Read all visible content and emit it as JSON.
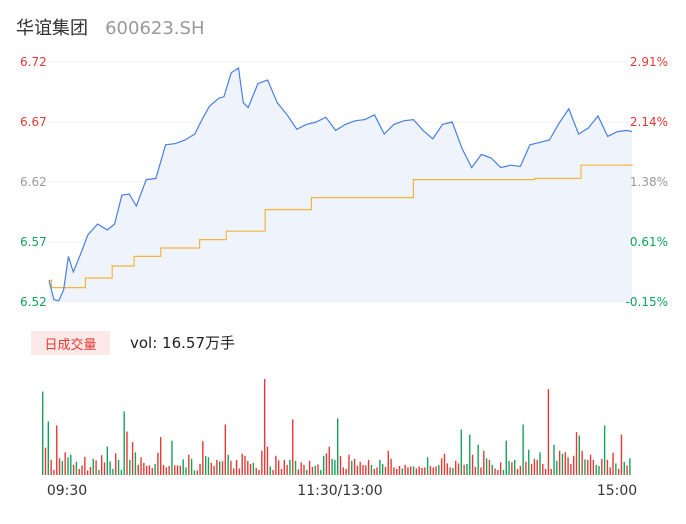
{
  "header": {
    "name": "华谊集团",
    "code": "600623.SH"
  },
  "colors": {
    "price_line": "#4a7fe0",
    "avg_line": "#f5b53b",
    "up": "#e53935",
    "down": "#12a35a",
    "neutral": "#999999",
    "area_fill": "#eef3fc"
  },
  "volume_badge": "日成交量",
  "volume_text": "vol: 16.57万手",
  "chart_data": {
    "type": "line",
    "price_axis": {
      "ticks": [
        "6.72",
        "6.67",
        "6.62",
        "6.57",
        "6.52"
      ],
      "tick_values": [
        6.72,
        6.67,
        6.62,
        6.57,
        6.52
      ],
      "range": [
        6.52,
        6.72
      ]
    },
    "pct_axis": {
      "ticks": [
        "2.91%",
        "2.14%",
        "1.38%",
        "0.61%",
        "-0.15%"
      ]
    },
    "x_ticks": [
      "09:30",
      "11:30/13:00",
      "15:00"
    ],
    "series": [
      {
        "key": "price",
        "x": [
          0,
          2,
          4,
          6,
          8,
          10,
          13,
          16,
          20,
          24,
          27,
          30,
          33,
          36,
          40,
          44,
          48,
          52,
          56,
          60,
          63,
          66,
          70,
          72,
          75,
          78,
          80,
          82,
          86,
          90,
          94,
          98,
          102,
          106,
          110,
          114,
          118,
          122,
          126,
          130,
          134,
          138,
          142,
          146,
          150,
          154,
          158,
          162,
          166,
          170,
          174,
          178,
          182,
          186,
          190,
          194,
          198,
          202,
          206,
          210,
          214,
          218,
          222,
          226,
          230,
          234,
          238,
          240
        ],
        "values": [
          6.538,
          6.522,
          6.521,
          6.53,
          6.558,
          6.545,
          6.56,
          6.576,
          6.585,
          6.58,
          6.585,
          6.609,
          6.61,
          6.6,
          6.622,
          6.623,
          6.651,
          6.652,
          6.655,
          6.66,
          6.672,
          6.683,
          6.69,
          6.691,
          6.711,
          6.715,
          6.686,
          6.682,
          6.702,
          6.705,
          6.686,
          6.676,
          6.664,
          6.668,
          6.67,
          6.674,
          6.663,
          6.668,
          6.671,
          6.672,
          6.676,
          6.66,
          6.668,
          6.671,
          6.672,
          6.663,
          6.656,
          6.668,
          6.67,
          6.648,
          6.632,
          6.643,
          6.64,
          6.632,
          6.634,
          6.633,
          6.651,
          6.653,
          6.655,
          6.669,
          6.681,
          6.66,
          6.665,
          6.675,
          6.658,
          6.662,
          6.663,
          6.662
        ]
      },
      {
        "key": "avg",
        "x": [
          0,
          1,
          15,
          26,
          35,
          46,
          62,
          73,
          89,
          108,
          150,
          200,
          219,
          240
        ],
        "values": [
          6.538,
          6.532,
          6.54,
          6.55,
          6.558,
          6.565,
          6.572,
          6.579,
          6.597,
          6.607,
          6.622,
          6.623,
          6.634,
          6.635
        ]
      }
    ],
    "volume": {
      "unit": "万手",
      "total": 16.57,
      "bars": [
        {
          "v": 1650,
          "d": "down"
        },
        {
          "v": 540,
          "d": "up"
        },
        {
          "v": 1060,
          "d": "down"
        },
        {
          "v": 300,
          "d": "up"
        },
        {
          "v": 100,
          "d": "up"
        },
        {
          "v": 980,
          "d": "up"
        },
        {
          "v": 330,
          "d": "up"
        },
        {
          "v": 280,
          "d": "down"
        },
        {
          "v": 450,
          "d": "up"
        },
        {
          "v": 350,
          "d": "down"
        },
        {
          "v": 400,
          "d": "down"
        },
        {
          "v": 200,
          "d": "up"
        },
        {
          "v": 260,
          "d": "down"
        },
        {
          "v": 120,
          "d": "up"
        },
        {
          "v": 190,
          "d": "up"
        },
        {
          "v": 360,
          "d": "up"
        },
        {
          "v": 90,
          "d": "up"
        },
        {
          "v": 160,
          "d": "up"
        },
        {
          "v": 320,
          "d": "down"
        },
        {
          "v": 290,
          "d": "up"
        },
        {
          "v": 100,
          "d": "down"
        },
        {
          "v": 390,
          "d": "up"
        },
        {
          "v": 250,
          "d": "up"
        },
        {
          "v": 560,
          "d": "down"
        },
        {
          "v": 270,
          "d": "down"
        },
        {
          "v": 120,
          "d": "down"
        },
        {
          "v": 430,
          "d": "up"
        },
        {
          "v": 300,
          "d": "down"
        },
        {
          "v": 100,
          "d": "down"
        },
        {
          "v": 1260,
          "d": "down"
        },
        {
          "v": 860,
          "d": "up"
        },
        {
          "v": 300,
          "d": "down"
        },
        {
          "v": 650,
          "d": "up"
        },
        {
          "v": 450,
          "d": "down"
        },
        {
          "v": 200,
          "d": "up"
        },
        {
          "v": 350,
          "d": "up"
        },
        {
          "v": 240,
          "d": "up"
        },
        {
          "v": 180,
          "d": "up"
        },
        {
          "v": 190,
          "d": "up"
        },
        {
          "v": 140,
          "d": "up"
        },
        {
          "v": 220,
          "d": "down"
        },
        {
          "v": 440,
          "d": "up"
        },
        {
          "v": 750,
          "d": "up"
        },
        {
          "v": 200,
          "d": "up"
        },
        {
          "v": 150,
          "d": "up"
        },
        {
          "v": 180,
          "d": "up"
        },
        {
          "v": 680,
          "d": "down"
        },
        {
          "v": 190,
          "d": "up"
        },
        {
          "v": 190,
          "d": "up"
        },
        {
          "v": 180,
          "d": "up"
        },
        {
          "v": 310,
          "d": "down"
        },
        {
          "v": 150,
          "d": "down"
        },
        {
          "v": 400,
          "d": "up"
        },
        {
          "v": 320,
          "d": "down"
        },
        {
          "v": 90,
          "d": "down"
        },
        {
          "v": 90,
          "d": "up"
        },
        {
          "v": 220,
          "d": "up"
        },
        {
          "v": 670,
          "d": "up"
        },
        {
          "v": 380,
          "d": "down"
        },
        {
          "v": 350,
          "d": "down"
        },
        {
          "v": 240,
          "d": "up"
        },
        {
          "v": 180,
          "d": "up"
        },
        {
          "v": 300,
          "d": "up"
        },
        {
          "v": 270,
          "d": "down"
        },
        {
          "v": 270,
          "d": "up"
        },
        {
          "v": 1000,
          "d": "up"
        },
        {
          "v": 400,
          "d": "down"
        },
        {
          "v": 280,
          "d": "up"
        },
        {
          "v": 130,
          "d": "up"
        },
        {
          "v": 300,
          "d": "up"
        },
        {
          "v": 130,
          "d": "up"
        },
        {
          "v": 420,
          "d": "up"
        },
        {
          "v": 380,
          "d": "up"
        },
        {
          "v": 280,
          "d": "up"
        },
        {
          "v": 220,
          "d": "up"
        },
        {
          "v": 240,
          "d": "down"
        },
        {
          "v": 140,
          "d": "up"
        },
        {
          "v": 100,
          "d": "up"
        },
        {
          "v": 480,
          "d": "up"
        },
        {
          "v": 1900,
          "d": "up"
        },
        {
          "v": 560,
          "d": "up"
        },
        {
          "v": 170,
          "d": "down"
        },
        {
          "v": 100,
          "d": "up"
        },
        {
          "v": 380,
          "d": "up"
        },
        {
          "v": 290,
          "d": "up"
        },
        {
          "v": 120,
          "d": "up"
        },
        {
          "v": 300,
          "d": "up"
        },
        {
          "v": 200,
          "d": "up"
        },
        {
          "v": 300,
          "d": "down"
        },
        {
          "v": 1100,
          "d": "up"
        },
        {
          "v": 280,
          "d": "down"
        },
        {
          "v": 110,
          "d": "up"
        },
        {
          "v": 250,
          "d": "up"
        },
        {
          "v": 200,
          "d": "up"
        },
        {
          "v": 100,
          "d": "down"
        },
        {
          "v": 280,
          "d": "up"
        },
        {
          "v": 160,
          "d": "up"
        },
        {
          "v": 180,
          "d": "down"
        },
        {
          "v": 210,
          "d": "up"
        },
        {
          "v": 100,
          "d": "down"
        },
        {
          "v": 380,
          "d": "down"
        },
        {
          "v": 430,
          "d": "up"
        },
        {
          "v": 560,
          "d": "up"
        },
        {
          "v": 320,
          "d": "down"
        },
        {
          "v": 300,
          "d": "down"
        },
        {
          "v": 1120,
          "d": "down"
        },
        {
          "v": 380,
          "d": "up"
        },
        {
          "v": 150,
          "d": "up"
        },
        {
          "v": 120,
          "d": "up"
        },
        {
          "v": 400,
          "d": "up"
        },
        {
          "v": 280,
          "d": "down"
        },
        {
          "v": 320,
          "d": "up"
        },
        {
          "v": 180,
          "d": "up"
        },
        {
          "v": 260,
          "d": "up"
        },
        {
          "v": 200,
          "d": "up"
        },
        {
          "v": 190,
          "d": "up"
        },
        {
          "v": 300,
          "d": "up"
        },
        {
          "v": 200,
          "d": "down"
        },
        {
          "v": 120,
          "d": "up"
        },
        {
          "v": 150,
          "d": "up"
        },
        {
          "v": 300,
          "d": "down"
        },
        {
          "v": 220,
          "d": "down"
        },
        {
          "v": 160,
          "d": "up"
        },
        {
          "v": 480,
          "d": "up"
        },
        {
          "v": 320,
          "d": "up"
        },
        {
          "v": 150,
          "d": "up"
        },
        {
          "v": 120,
          "d": "up"
        },
        {
          "v": 180,
          "d": "up"
        },
        {
          "v": 130,
          "d": "down"
        },
        {
          "v": 200,
          "d": "up"
        },
        {
          "v": 150,
          "d": "up"
        },
        {
          "v": 170,
          "d": "up"
        },
        {
          "v": 170,
          "d": "down"
        },
        {
          "v": 130,
          "d": "up"
        },
        {
          "v": 170,
          "d": "up"
        },
        {
          "v": 140,
          "d": "up"
        },
        {
          "v": 150,
          "d": "up"
        },
        {
          "v": 350,
          "d": "down"
        },
        {
          "v": 180,
          "d": "up"
        },
        {
          "v": 150,
          "d": "up"
        },
        {
          "v": 170,
          "d": "up"
        },
        {
          "v": 200,
          "d": "down"
        },
        {
          "v": 330,
          "d": "up"
        },
        {
          "v": 420,
          "d": "up"
        },
        {
          "v": 230,
          "d": "up"
        },
        {
          "v": 150,
          "d": "up"
        },
        {
          "v": 140,
          "d": "down"
        },
        {
          "v": 280,
          "d": "up"
        },
        {
          "v": 230,
          "d": "up"
        },
        {
          "v": 900,
          "d": "down"
        },
        {
          "v": 200,
          "d": "up"
        },
        {
          "v": 220,
          "d": "down"
        },
        {
          "v": 800,
          "d": "down"
        },
        {
          "v": 400,
          "d": "up"
        },
        {
          "v": 160,
          "d": "up"
        },
        {
          "v": 600,
          "d": "down"
        },
        {
          "v": 150,
          "d": "up"
        },
        {
          "v": 480,
          "d": "up"
        },
        {
          "v": 330,
          "d": "down"
        },
        {
          "v": 300,
          "d": "up"
        },
        {
          "v": 200,
          "d": "down"
        },
        {
          "v": 130,
          "d": "up"
        },
        {
          "v": 100,
          "d": "up"
        },
        {
          "v": 250,
          "d": "up"
        },
        {
          "v": 100,
          "d": "down"
        },
        {
          "v": 680,
          "d": "down"
        },
        {
          "v": 280,
          "d": "down"
        },
        {
          "v": 250,
          "d": "up"
        },
        {
          "v": 300,
          "d": "down"
        },
        {
          "v": 120,
          "d": "up"
        },
        {
          "v": 180,
          "d": "up"
        },
        {
          "v": 1000,
          "d": "down"
        },
        {
          "v": 260,
          "d": "up"
        },
        {
          "v": 500,
          "d": "down"
        },
        {
          "v": 220,
          "d": "up"
        },
        {
          "v": 320,
          "d": "up"
        },
        {
          "v": 300,
          "d": "up"
        },
        {
          "v": 450,
          "d": "down"
        },
        {
          "v": 220,
          "d": "up"
        },
        {
          "v": 120,
          "d": "up"
        },
        {
          "v": 1700,
          "d": "up"
        },
        {
          "v": 120,
          "d": "up"
        },
        {
          "v": 600,
          "d": "down"
        },
        {
          "v": 280,
          "d": "down"
        },
        {
          "v": 480,
          "d": "up"
        },
        {
          "v": 420,
          "d": "down"
        },
        {
          "v": 450,
          "d": "up"
        },
        {
          "v": 350,
          "d": "up"
        },
        {
          "v": 220,
          "d": "up"
        },
        {
          "v": 380,
          "d": "up"
        },
        {
          "v": 850,
          "d": "up"
        },
        {
          "v": 780,
          "d": "down"
        },
        {
          "v": 480,
          "d": "up"
        },
        {
          "v": 310,
          "d": "down"
        },
        {
          "v": 300,
          "d": "up"
        },
        {
          "v": 400,
          "d": "up"
        },
        {
          "v": 300,
          "d": "up"
        },
        {
          "v": 200,
          "d": "down"
        },
        {
          "v": 180,
          "d": "down"
        },
        {
          "v": 320,
          "d": "up"
        },
        {
          "v": 980,
          "d": "down"
        },
        {
          "v": 300,
          "d": "up"
        },
        {
          "v": 150,
          "d": "up"
        },
        {
          "v": 440,
          "d": "up"
        },
        {
          "v": 230,
          "d": "down"
        },
        {
          "v": 120,
          "d": "up"
        },
        {
          "v": 800,
          "d": "up"
        },
        {
          "v": 260,
          "d": "down"
        },
        {
          "v": 190,
          "d": "up"
        },
        {
          "v": 330,
          "d": "down"
        }
      ]
    }
  }
}
